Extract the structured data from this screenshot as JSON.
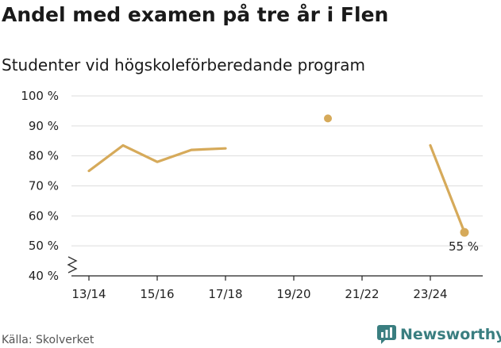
{
  "header": {
    "title": "Andel med examen på tre år i Flen",
    "subtitle": "Studenter vid högskoleförberedande program"
  },
  "footer": {
    "source": "Källa: Skolverket",
    "brand": "Newsworthy"
  },
  "colors": {
    "series": "#d6aa5a",
    "grid": "#dddddd",
    "axis": "#222222",
    "brand": "#3a7e80"
  },
  "chart_data": {
    "type": "line",
    "x": [
      "13/14",
      "14/15",
      "15/16",
      "16/17",
      "17/18",
      "18/19",
      "19/20",
      "20/21",
      "21/22",
      "22/23",
      "23/24",
      "24/25"
    ],
    "series": [
      {
        "values": [
          75,
          83.5,
          78,
          82,
          82.5,
          null,
          null,
          92.5,
          null,
          null,
          83.5,
          54.5
        ]
      }
    ],
    "xticks": [
      "13/14",
      "15/16",
      "17/18",
      "19/20",
      "21/22",
      "23/24"
    ],
    "yticks": [
      "40 %",
      "50 %",
      "60 %",
      "70 %",
      "80 %",
      "90 %",
      "100 %"
    ],
    "ylim": [
      40,
      100
    ],
    "grid": true,
    "axis_break": true,
    "annotations": [
      {
        "x": "24/25",
        "text": "55 %"
      }
    ]
  }
}
